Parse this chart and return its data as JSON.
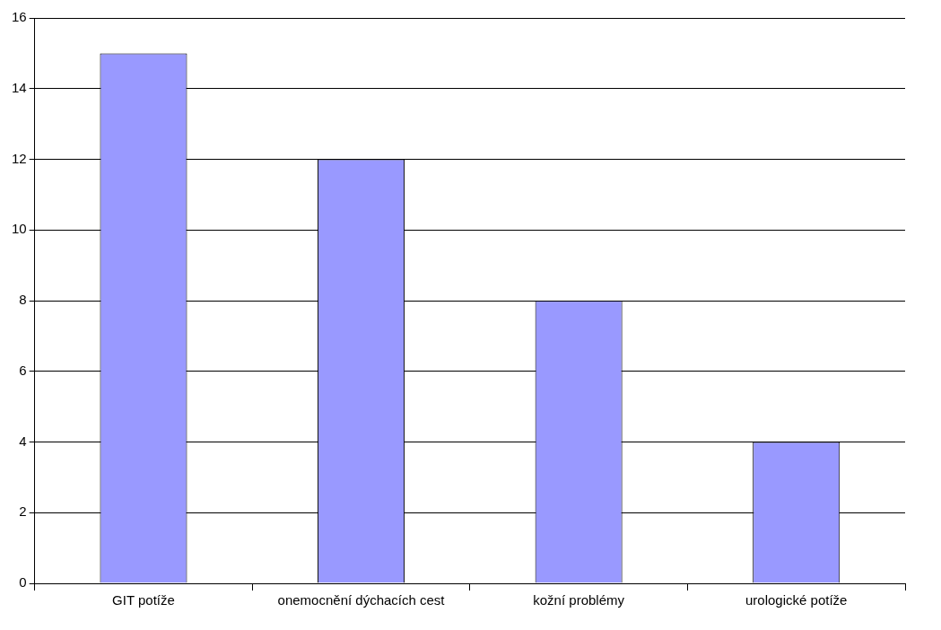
{
  "chart_data": {
    "type": "bar",
    "categories": [
      "GIT potíže",
      "onemocnění dýchacích cest",
      "kožní problémy",
      "urologické potíže"
    ],
    "values": [
      15,
      12,
      8,
      4
    ],
    "color": "#9999ff",
    "ylim": [
      0,
      16
    ],
    "yticks": [
      0,
      2,
      4,
      6,
      8,
      10,
      12,
      14,
      16
    ],
    "grid": "y",
    "legend": false
  }
}
